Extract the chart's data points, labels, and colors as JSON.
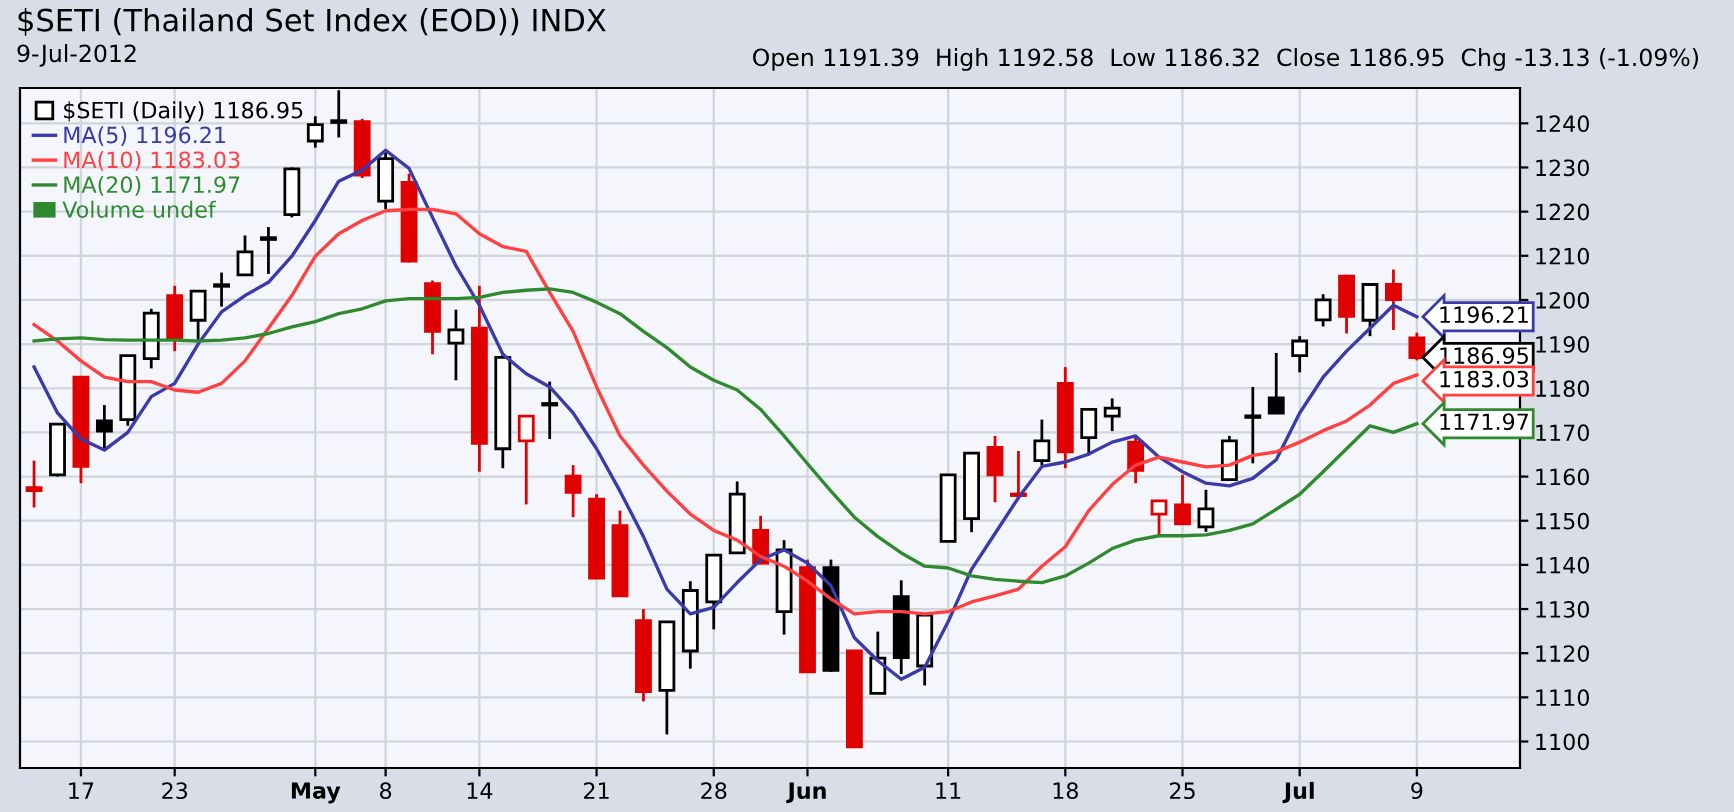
{
  "chart_data": {
    "type": "candlestick",
    "title": "$SETI (Thailand Set Index (EOD)) INDX",
    "subtitle": "9-Jul-2012",
    "annotations": [
      "Open 1191.39  High 1192.58  Low 1186.32  Close 1186.95  Chg -13.13 (-1.09%)",
      "Volume undef"
    ],
    "categories": [
      null,
      null,
      "17",
      null,
      null,
      null,
      "23",
      null,
      null,
      null,
      null,
      null,
      "May",
      null,
      null,
      "8",
      null,
      null,
      null,
      "14",
      null,
      null,
      null,
      null,
      "21",
      null,
      null,
      null,
      null,
      "28",
      null,
      null,
      null,
      "Jun",
      null,
      null,
      null,
      null,
      null,
      "11",
      null,
      null,
      null,
      null,
      "18",
      null,
      null,
      null,
      null,
      "25",
      null,
      null,
      null,
      null,
      "Jul",
      null,
      null,
      null,
      null,
      "9"
    ],
    "ylim": [
      1094,
      1248
    ],
    "yticks": [
      1100,
      1110,
      1120,
      1130,
      1140,
      1150,
      1160,
      1170,
      1180,
      1190,
      1200,
      1210,
      1220,
      1230,
      1240
    ],
    "grid": true,
    "legend": "top left",
    "series": [
      {
        "name": "$SETI (Daily) 1186.95",
        "type": "candlestick",
        "color": "#000000",
        "ohlc": [
          [
            1157.5,
            1163.6,
            1153.0,
            1156.8
          ],
          [
            1160.4,
            1172.0,
            1160.0,
            1171.9
          ],
          [
            1182.5,
            1182.5,
            1158.5,
            1162.3
          ],
          [
            1172.6,
            1176.2,
            1166.3,
            1170.3
          ],
          [
            1172.9,
            1187.5,
            1171.5,
            1187.4
          ],
          [
            1186.7,
            1198.0,
            1184.5,
            1197.0
          ],
          [
            1201.0,
            1203.2,
            1188.4,
            1191.0
          ],
          [
            1195.4,
            1202.0,
            1191.0,
            1202.0
          ],
          [
            1203.4,
            1206.2,
            1198.5,
            1203.1
          ],
          [
            1205.7,
            1214.6,
            1205.7,
            1210.9
          ],
          [
            1214.1,
            1216.5,
            1205.9,
            1213.7
          ],
          [
            1219.3,
            1230.0,
            1218.7,
            1229.7
          ],
          [
            1236.0,
            1241.6,
            1234.5,
            1239.7
          ],
          [
            1240.6,
            1247.5,
            1236.8,
            1240.2
          ],
          [
            1240.4,
            1241.0,
            1227.6,
            1228.3
          ],
          [
            1222.4,
            1233.5,
            1220.6,
            1232.0
          ],
          [
            1226.6,
            1228.6,
            1208.5,
            1208.8
          ],
          [
            1203.7,
            1204.4,
            1187.7,
            1192.9
          ],
          [
            1190.2,
            1197.8,
            1181.8,
            1193.2
          ],
          [
            1193.6,
            1203.2,
            1161.1,
            1167.5
          ],
          [
            1166.3,
            1188.0,
            1161.9,
            1187.0
          ],
          [
            1168.1,
            1173.7,
            1153.7,
            1173.7
          ],
          [
            1176.4,
            1181.5,
            1168.5,
            1176.2
          ],
          [
            1160.1,
            1162.6,
            1150.8,
            1156.4
          ],
          [
            1154.9,
            1156.0,
            1137.0,
            1137.0
          ],
          [
            1148.9,
            1152.3,
            1133.0,
            1133.0
          ],
          [
            1127.4,
            1130.0,
            1109.1,
            1111.3
          ],
          [
            1111.6,
            1127.1,
            1101.6,
            1127.1
          ],
          [
            1120.5,
            1136.3,
            1116.5,
            1134.2
          ],
          [
            1131.6,
            1142.2,
            1125.4,
            1142.2
          ],
          [
            1142.7,
            1158.9,
            1142.7,
            1156.0
          ],
          [
            1147.8,
            1151.1,
            1140.4,
            1140.4
          ],
          [
            1129.4,
            1145.6,
            1124.2,
            1143.4
          ],
          [
            1139.4,
            1141.2,
            1115.8,
            1115.8
          ],
          [
            1139.4,
            1141.2,
            1115.8,
            1116.1
          ],
          [
            1120.5,
            1120.5,
            1098.8,
            1098.8
          ],
          [
            1110.9,
            1124.9,
            1110.9,
            1118.9
          ],
          [
            1132.8,
            1136.5,
            1115.3,
            1119.0
          ],
          [
            1117.1,
            1128.6,
            1112.7,
            1128.6
          ],
          [
            1145.3,
            1160.4,
            1145.3,
            1160.4
          ],
          [
            1150.5,
            1165.3,
            1147.4,
            1165.3
          ],
          [
            1166.6,
            1169.2,
            1154.2,
            1160.4
          ],
          [
            1156.0,
            1165.8,
            1155.0,
            1155.7
          ],
          [
            1163.6,
            1172.9,
            1162.6,
            1168.1
          ],
          [
            1181.1,
            1184.8,
            1161.9,
            1165.6
          ],
          [
            1168.8,
            1175.2,
            1164.8,
            1175.2
          ],
          [
            1173.7,
            1177.7,
            1170.3,
            1175.5
          ],
          [
            1167.8,
            1168.8,
            1158.5,
            1161.4
          ],
          [
            1151.5,
            1154.5,
            1146.8,
            1154.5
          ],
          [
            1153.6,
            1160.4,
            1149.3,
            1149.3
          ],
          [
            1148.6,
            1157.0,
            1147.5,
            1152.7
          ],
          [
            1159.3,
            1169.2,
            1159.3,
            1168.1
          ],
          [
            1173.6,
            1180.3,
            1163.0,
            1173.4
          ],
          [
            1177.8,
            1188.0,
            1174.4,
            1174.4
          ],
          [
            1187.4,
            1191.8,
            1183.6,
            1190.7
          ],
          [
            1195.5,
            1201.3,
            1194.0,
            1200.0
          ],
          [
            1205.4,
            1205.7,
            1192.4,
            1196.3
          ],
          [
            1195.4,
            1203.5,
            1191.8,
            1203.5
          ],
          [
            1203.5,
            1206.9,
            1193.2,
            1200.1
          ],
          [
            1191.39,
            1192.58,
            1186.32,
            1186.95
          ]
        ],
        "colors": [
          "#e00000",
          "#000000",
          "#e00000",
          "#000000",
          "#000000",
          "#000000",
          "#e00000",
          "#000000",
          "#000000",
          "#000000",
          "#000000",
          "#000000",
          "#000000",
          "#000000",
          "#e00000",
          "#000000",
          "#e00000",
          "#e00000",
          "#000000",
          "#e00000",
          "#000000",
          "#e00000",
          "#000000",
          "#e00000",
          "#e00000",
          "#e00000",
          "#e00000",
          "#000000",
          "#000000",
          "#000000",
          "#000000",
          "#e00000",
          "#000000",
          "#e00000",
          "#000000",
          "#e00000",
          "#000000",
          "#000000",
          "#000000",
          "#000000",
          "#000000",
          "#e00000",
          "#e00000",
          "#000000",
          "#e00000",
          "#000000",
          "#000000",
          "#e00000",
          "#e00000",
          "#e00000",
          "#000000",
          "#000000",
          "#000000",
          "#000000",
          "#000000",
          "#000000",
          "#e00000",
          "#000000",
          "#e00000",
          "#e00000"
        ],
        "value_labels": [
          null,
          null,
          null,
          null,
          null,
          null,
          null,
          null,
          null,
          null,
          null,
          null,
          null,
          null,
          null,
          null,
          null,
          null,
          null,
          null,
          null,
          null,
          null,
          null,
          null,
          null,
          null,
          null,
          null,
          null,
          null,
          null,
          null,
          null,
          null,
          null,
          null,
          null,
          null,
          null,
          null,
          null,
          null,
          null,
          null,
          null,
          null,
          null,
          null,
          null,
          null,
          null,
          null,
          null,
          null,
          null,
          null,
          null,
          null,
          "1186.95"
        ]
      },
      {
        "name": "MA(5) 1196.21",
        "type": "line",
        "color": "#3a3aa8",
        "values": [
          1184.8,
          1174.4,
          1168.5,
          1166.0,
          1170.0,
          1178.1,
          1181.1,
          1190.0,
          1197.3,
          1201.0,
          1204.0,
          1209.9,
          1218.0,
          1226.9,
          1229.4,
          1233.9,
          1229.8,
          1218.7,
          1207.7,
          1198.8,
          1187.7,
          1183.3,
          1180.3,
          1174.4,
          1166.3,
          1156.7,
          1146.4,
          1134.5,
          1128.9,
          1130.4,
          1136.0,
          1141.2,
          1143.4,
          1140.4,
          1135.3,
          1123.5,
          1118.3,
          1114.1,
          1116.8,
          1127.1,
          1139.0,
          1147.1,
          1155.2,
          1162.3,
          1163.3,
          1165.1,
          1167.8,
          1169.2,
          1164.4,
          1161.1,
          1158.5,
          1157.9,
          1159.6,
          1163.8,
          1174.4,
          1182.5,
          1188.4,
          1193.6,
          1198.8,
          1196.21
        ],
        "value_labels": [
          null,
          null,
          null,
          null,
          null,
          null,
          null,
          null,
          null,
          null,
          null,
          null,
          null,
          null,
          null,
          null,
          null,
          null,
          null,
          null,
          null,
          null,
          null,
          null,
          null,
          null,
          null,
          null,
          null,
          null,
          null,
          null,
          null,
          null,
          null,
          null,
          null,
          null,
          null,
          null,
          null,
          null,
          null,
          null,
          null,
          null,
          null,
          null,
          null,
          null,
          null,
          null,
          null,
          null,
          null,
          null,
          null,
          null,
          null,
          "1196.21"
        ]
      },
      {
        "name": "MA(10) 1183.03",
        "type": "line",
        "color": "#ff4040",
        "values": [
          1194.4,
          1190.7,
          1186.2,
          1182.5,
          1181.5,
          1181.5,
          1179.6,
          1179.1,
          1181.1,
          1186.2,
          1193.6,
          1201.0,
          1209.9,
          1215.0,
          1218.0,
          1220.2,
          1220.5,
          1220.5,
          1219.5,
          1215.0,
          1212.1,
          1211.0,
          1201.7,
          1192.9,
          1180.3,
          1169.2,
          1162.6,
          1156.7,
          1151.5,
          1147.8,
          1145.6,
          1141.9,
          1139.7,
          1136.3,
          1132.3,
          1128.9,
          1129.4,
          1129.4,
          1128.9,
          1129.4,
          1131.6,
          1133.0,
          1134.5,
          1139.7,
          1144.1,
          1152.3,
          1158.2,
          1162.6,
          1164.4,
          1163.3,
          1162.2,
          1162.6,
          1164.8,
          1165.6,
          1167.8,
          1170.4,
          1172.6,
          1176.2,
          1181.1,
          1183.03
        ],
        "value_labels": [
          null,
          null,
          null,
          null,
          null,
          null,
          null,
          null,
          null,
          null,
          null,
          null,
          null,
          null,
          null,
          null,
          null,
          null,
          null,
          null,
          null,
          null,
          null,
          null,
          null,
          null,
          null,
          null,
          null,
          null,
          null,
          null,
          null,
          null,
          null,
          null,
          null,
          null,
          null,
          null,
          null,
          null,
          null,
          null,
          null,
          null,
          null,
          null,
          null,
          null,
          null,
          null,
          null,
          null,
          null,
          null,
          null,
          null,
          null,
          "1183.03"
        ]
      },
      {
        "name": "MA(20) 1171.97",
        "type": "line",
        "color": "#2f8a2f",
        "values": [
          1190.7,
          1191.2,
          1191.4,
          1191.0,
          1190.9,
          1190.9,
          1190.9,
          1190.7,
          1190.9,
          1191.4,
          1192.4,
          1193.9,
          1195.1,
          1196.9,
          1198.0,
          1199.8,
          1200.3,
          1200.3,
          1200.3,
          1200.6,
          1201.7,
          1202.2,
          1202.5,
          1201.7,
          1199.5,
          1196.9,
          1192.9,
          1189.2,
          1184.8,
          1181.8,
          1179.6,
          1175.2,
          1169.2,
          1162.9,
          1156.7,
          1150.8,
          1146.4,
          1142.7,
          1139.7,
          1139.3,
          1137.5,
          1136.7,
          1136.3,
          1136.0,
          1137.5,
          1140.4,
          1143.7,
          1145.6,
          1146.6,
          1146.6,
          1146.8,
          1147.8,
          1149.3,
          1152.6,
          1156.0,
          1161.1,
          1166.3,
          1171.5,
          1170.0,
          1171.97
        ],
        "value_labels": [
          null,
          null,
          null,
          null,
          null,
          null,
          null,
          null,
          null,
          null,
          null,
          null,
          null,
          null,
          null,
          null,
          null,
          null,
          null,
          null,
          null,
          null,
          null,
          null,
          null,
          null,
          null,
          null,
          null,
          null,
          null,
          null,
          null,
          null,
          null,
          null,
          null,
          null,
          null,
          null,
          null,
          null,
          null,
          null,
          null,
          null,
          null,
          null,
          null,
          null,
          null,
          null,
          null,
          null,
          null,
          null,
          null,
          null,
          null,
          "1171.97"
        ]
      }
    ]
  }
}
